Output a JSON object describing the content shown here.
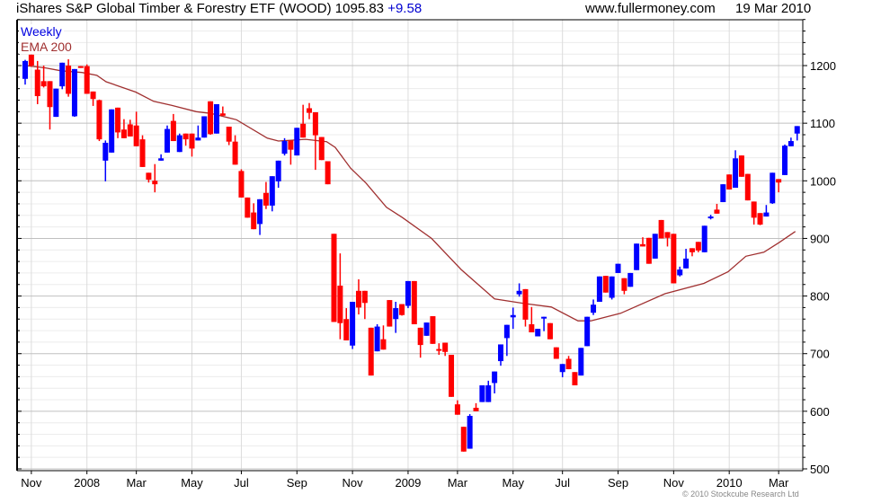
{
  "header": {
    "title": "iShares S&P Global Timber & Forestry ETF (WOOD) 1095.83",
    "change": "+9.58",
    "site": "www.fullermoney.com",
    "date": "19 Mar 2010"
  },
  "legend": {
    "period": "Weekly",
    "indicator": "EMA 200"
  },
  "copyright": "© 2010 Stockcube Research Ltd",
  "colors": {
    "up": "#0000ff",
    "down": "#ff0000",
    "ema": "#a03030",
    "change": "#0000d0"
  },
  "chart_data": {
    "type": "candlestick",
    "title": "iShares S&P Global Timber & Forestry ETF (WOOD)",
    "interval": "weekly",
    "ylim": [
      500,
      1280
    ],
    "yticks": [
      500,
      600,
      700,
      800,
      900,
      1000,
      1100,
      1200
    ],
    "xtick_labels": [
      {
        "label": "Nov",
        "week": 2
      },
      {
        "label": "2008",
        "week": 11
      },
      {
        "label": "Mar",
        "week": 19
      },
      {
        "label": "May",
        "week": 28
      },
      {
        "label": "Jul",
        "week": 36
      },
      {
        "label": "Sep",
        "week": 45
      },
      {
        "label": "Nov",
        "week": 54
      },
      {
        "label": "2009",
        "week": 63
      },
      {
        "label": "Mar",
        "week": 71
      },
      {
        "label": "May",
        "week": 80
      },
      {
        "label": "Jul",
        "week": 88
      },
      {
        "label": "Sep",
        "week": 97
      },
      {
        "label": "Nov",
        "week": 106
      },
      {
        "label": "2010",
        "week": 115
      },
      {
        "label": "Mar",
        "week": 123
      }
    ],
    "ohlc_fields": [
      "open",
      "high",
      "low",
      "close"
    ],
    "candles": [
      [
        1177,
        1210,
        1167,
        1208
      ],
      [
        1219,
        1219,
        1198,
        1200
      ],
      [
        1193,
        1208,
        1133,
        1147
      ],
      [
        1173,
        1200,
        1162,
        1164
      ],
      [
        1173,
        1173,
        1089,
        1128
      ],
      [
        1111,
        1160,
        1111,
        1160
      ],
      [
        1164,
        1205,
        1159,
        1205
      ],
      [
        1200,
        1211,
        1146,
        1151
      ],
      [
        1112,
        1194,
        1111,
        1194
      ],
      [
        1199,
        1199,
        1196,
        1196
      ],
      [
        1199,
        1202,
        1151,
        1151
      ],
      [
        1155,
        1155,
        1130,
        1142
      ],
      [
        1140,
        1141,
        1069,
        1072
      ],
      [
        1035,
        1070,
        999,
        1066
      ],
      [
        1049,
        1124,
        1049,
        1124
      ],
      [
        1127,
        1127,
        1074,
        1084
      ],
      [
        1089,
        1107,
        1074,
        1074
      ],
      [
        1098,
        1106,
        1077,
        1077
      ],
      [
        1096,
        1120,
        1060,
        1060
      ],
      [
        1072,
        1079,
        1024,
        1024
      ],
      [
        1014,
        1014,
        997,
        1002
      ],
      [
        1000,
        1029,
        980,
        994
      ],
      [
        1035,
        1046,
        1035,
        1039
      ],
      [
        1049,
        1096,
        1049,
        1090
      ],
      [
        1104,
        1116,
        1069,
        1069
      ],
      [
        1050,
        1082,
        1050,
        1079
      ],
      [
        1082,
        1082,
        1061,
        1072
      ],
      [
        1082,
        1082,
        1042,
        1056
      ],
      [
        1070,
        1096,
        1070,
        1075
      ],
      [
        1075,
        1112,
        1075,
        1112
      ],
      [
        1138,
        1138,
        1080,
        1081
      ],
      [
        1082,
        1133,
        1082,
        1133
      ],
      [
        1117,
        1129,
        1113,
        1113
      ],
      [
        1094,
        1094,
        1062,
        1068
      ],
      [
        1068,
        1079,
        1028,
        1028
      ],
      [
        1017,
        1020,
        971,
        971
      ],
      [
        971,
        971,
        936,
        936
      ],
      [
        945,
        961,
        916,
        916
      ],
      [
        925,
        968,
        906,
        968
      ],
      [
        979,
        998,
        951,
        957
      ],
      [
        957,
        1008,
        947,
        1008
      ],
      [
        999,
        1035,
        988,
        1035
      ],
      [
        1047,
        1074,
        1044,
        1069
      ],
      [
        1070,
        1070,
        1028,
        1054
      ],
      [
        1044,
        1092,
        1044,
        1092
      ],
      [
        1099,
        1132,
        1075,
        1075
      ],
      [
        1126,
        1135,
        1107,
        1118
      ],
      [
        1119,
        1119,
        1019,
        1079
      ],
      [
        1076,
        1076,
        1036,
        1036
      ],
      [
        1034,
        1034,
        994,
        994
      ],
      [
        908,
        908,
        755,
        755
      ],
      [
        818,
        874,
        725,
        753
      ],
      [
        760,
        779,
        723,
        723
      ],
      [
        714,
        790,
        708,
        790
      ],
      [
        809,
        829,
        768,
        780
      ],
      [
        809,
        809,
        760,
        788
      ],
      [
        745,
        745,
        662,
        662
      ],
      [
        704,
        751,
        704,
        747
      ],
      [
        725,
        749,
        707,
        707
      ],
      [
        793,
        793,
        747,
        747
      ],
      [
        760,
        790,
        736,
        779
      ],
      [
        786,
        786,
        766,
        767
      ],
      [
        783,
        826,
        779,
        826
      ],
      [
        826,
        826,
        751,
        751
      ],
      [
        745,
        745,
        693,
        715
      ],
      [
        731,
        754,
        731,
        754
      ],
      [
        765,
        765,
        717,
        717
      ],
      [
        708,
        718,
        698,
        706
      ],
      [
        719,
        719,
        696,
        703
      ],
      [
        698,
        698,
        625,
        625
      ],
      [
        612,
        619,
        594,
        594
      ],
      [
        573,
        573,
        530,
        530
      ],
      [
        535,
        595,
        535,
        592
      ],
      [
        606,
        614,
        600,
        600
      ],
      [
        616,
        645,
        616,
        645
      ],
      [
        616,
        653,
        616,
        645
      ],
      [
        649,
        669,
        631,
        669
      ],
      [
        687,
        716,
        679,
        716
      ],
      [
        727,
        750,
        696,
        750
      ],
      [
        763,
        780,
        743,
        767
      ],
      [
        803,
        822,
        799,
        809
      ],
      [
        812,
        812,
        747,
        759
      ],
      [
        751,
        781,
        737,
        737
      ],
      [
        730,
        743,
        730,
        743
      ],
      [
        761,
        764,
        739,
        764
      ],
      [
        753,
        753,
        725,
        725
      ],
      [
        711,
        711,
        691,
        691
      ],
      [
        668,
        682,
        659,
        682
      ],
      [
        691,
        696,
        673,
        673
      ],
      [
        668,
        668,
        645,
        645
      ],
      [
        662,
        710,
        662,
        710
      ],
      [
        713,
        764,
        713,
        764
      ],
      [
        771,
        794,
        767,
        785
      ],
      [
        790,
        834,
        790,
        834
      ],
      [
        835,
        835,
        806,
        806
      ],
      [
        797,
        834,
        794,
        834
      ],
      [
        840,
        856,
        840,
        856
      ],
      [
        831,
        831,
        803,
        809
      ],
      [
        816,
        840,
        816,
        840
      ],
      [
        845,
        891,
        845,
        891
      ],
      [
        890,
        902,
        886,
        886
      ],
      [
        901,
        901,
        856,
        856
      ],
      [
        865,
        908,
        865,
        908
      ],
      [
        932,
        932,
        900,
        900
      ],
      [
        911,
        911,
        886,
        901
      ],
      [
        908,
        908,
        822,
        822
      ],
      [
        836,
        851,
        834,
        846
      ],
      [
        848,
        882,
        848,
        865
      ],
      [
        883,
        883,
        869,
        876
      ],
      [
        894,
        894,
        876,
        879
      ],
      [
        876,
        922,
        876,
        922
      ],
      [
        935,
        941,
        933,
        938
      ],
      [
        950,
        960,
        943,
        943
      ],
      [
        963,
        994,
        963,
        994
      ],
      [
        1011,
        1011,
        985,
        985
      ],
      [
        988,
        1053,
        988,
        1039
      ],
      [
        1044,
        1044,
        1007,
        1007
      ],
      [
        1012,
        1012,
        966,
        966
      ],
      [
        964,
        964,
        924,
        936
      ],
      [
        944,
        944,
        923,
        924
      ],
      [
        938,
        958,
        938,
        945
      ],
      [
        961,
        1014,
        960,
        1014
      ],
      [
        1003,
        1003,
        980,
        997
      ],
      [
        1010,
        1063,
        1010,
        1061
      ],
      [
        1060,
        1075,
        1060,
        1069
      ],
      [
        1082,
        1095,
        1070,
        1095
      ]
    ],
    "ema_200": [
      [
        1,
        1200
      ],
      [
        4.3,
        1196
      ],
      [
        6.8,
        1191
      ],
      [
        10.2,
        1188
      ],
      [
        12.6,
        1183
      ],
      [
        14.1,
        1172
      ],
      [
        18.9,
        1154
      ],
      [
        21.8,
        1138
      ],
      [
        24.7,
        1131
      ],
      [
        28.7,
        1120
      ],
      [
        31.1,
        1117
      ],
      [
        35.2,
        1106
      ],
      [
        40.2,
        1074
      ],
      [
        42,
        1069
      ],
      [
        46.4,
        1072
      ],
      [
        49.8,
        1068
      ],
      [
        51.2,
        1058
      ],
      [
        53.7,
        1022
      ],
      [
        56.2,
        996
      ],
      [
        59.5,
        954
      ],
      [
        62.1,
        936
      ],
      [
        66.8,
        900
      ],
      [
        71.6,
        846
      ],
      [
        77,
        795
      ],
      [
        81.8,
        787
      ],
      [
        86.2,
        781
      ],
      [
        90.5,
        757
      ],
      [
        92.6,
        757
      ],
      [
        97.4,
        770
      ],
      [
        104.6,
        804
      ],
      [
        110.9,
        822
      ],
      [
        114.8,
        842
      ],
      [
        117.7,
        869
      ],
      [
        120.6,
        876
      ],
      [
        123.1,
        893
      ],
      [
        125.7,
        912
      ]
    ]
  }
}
